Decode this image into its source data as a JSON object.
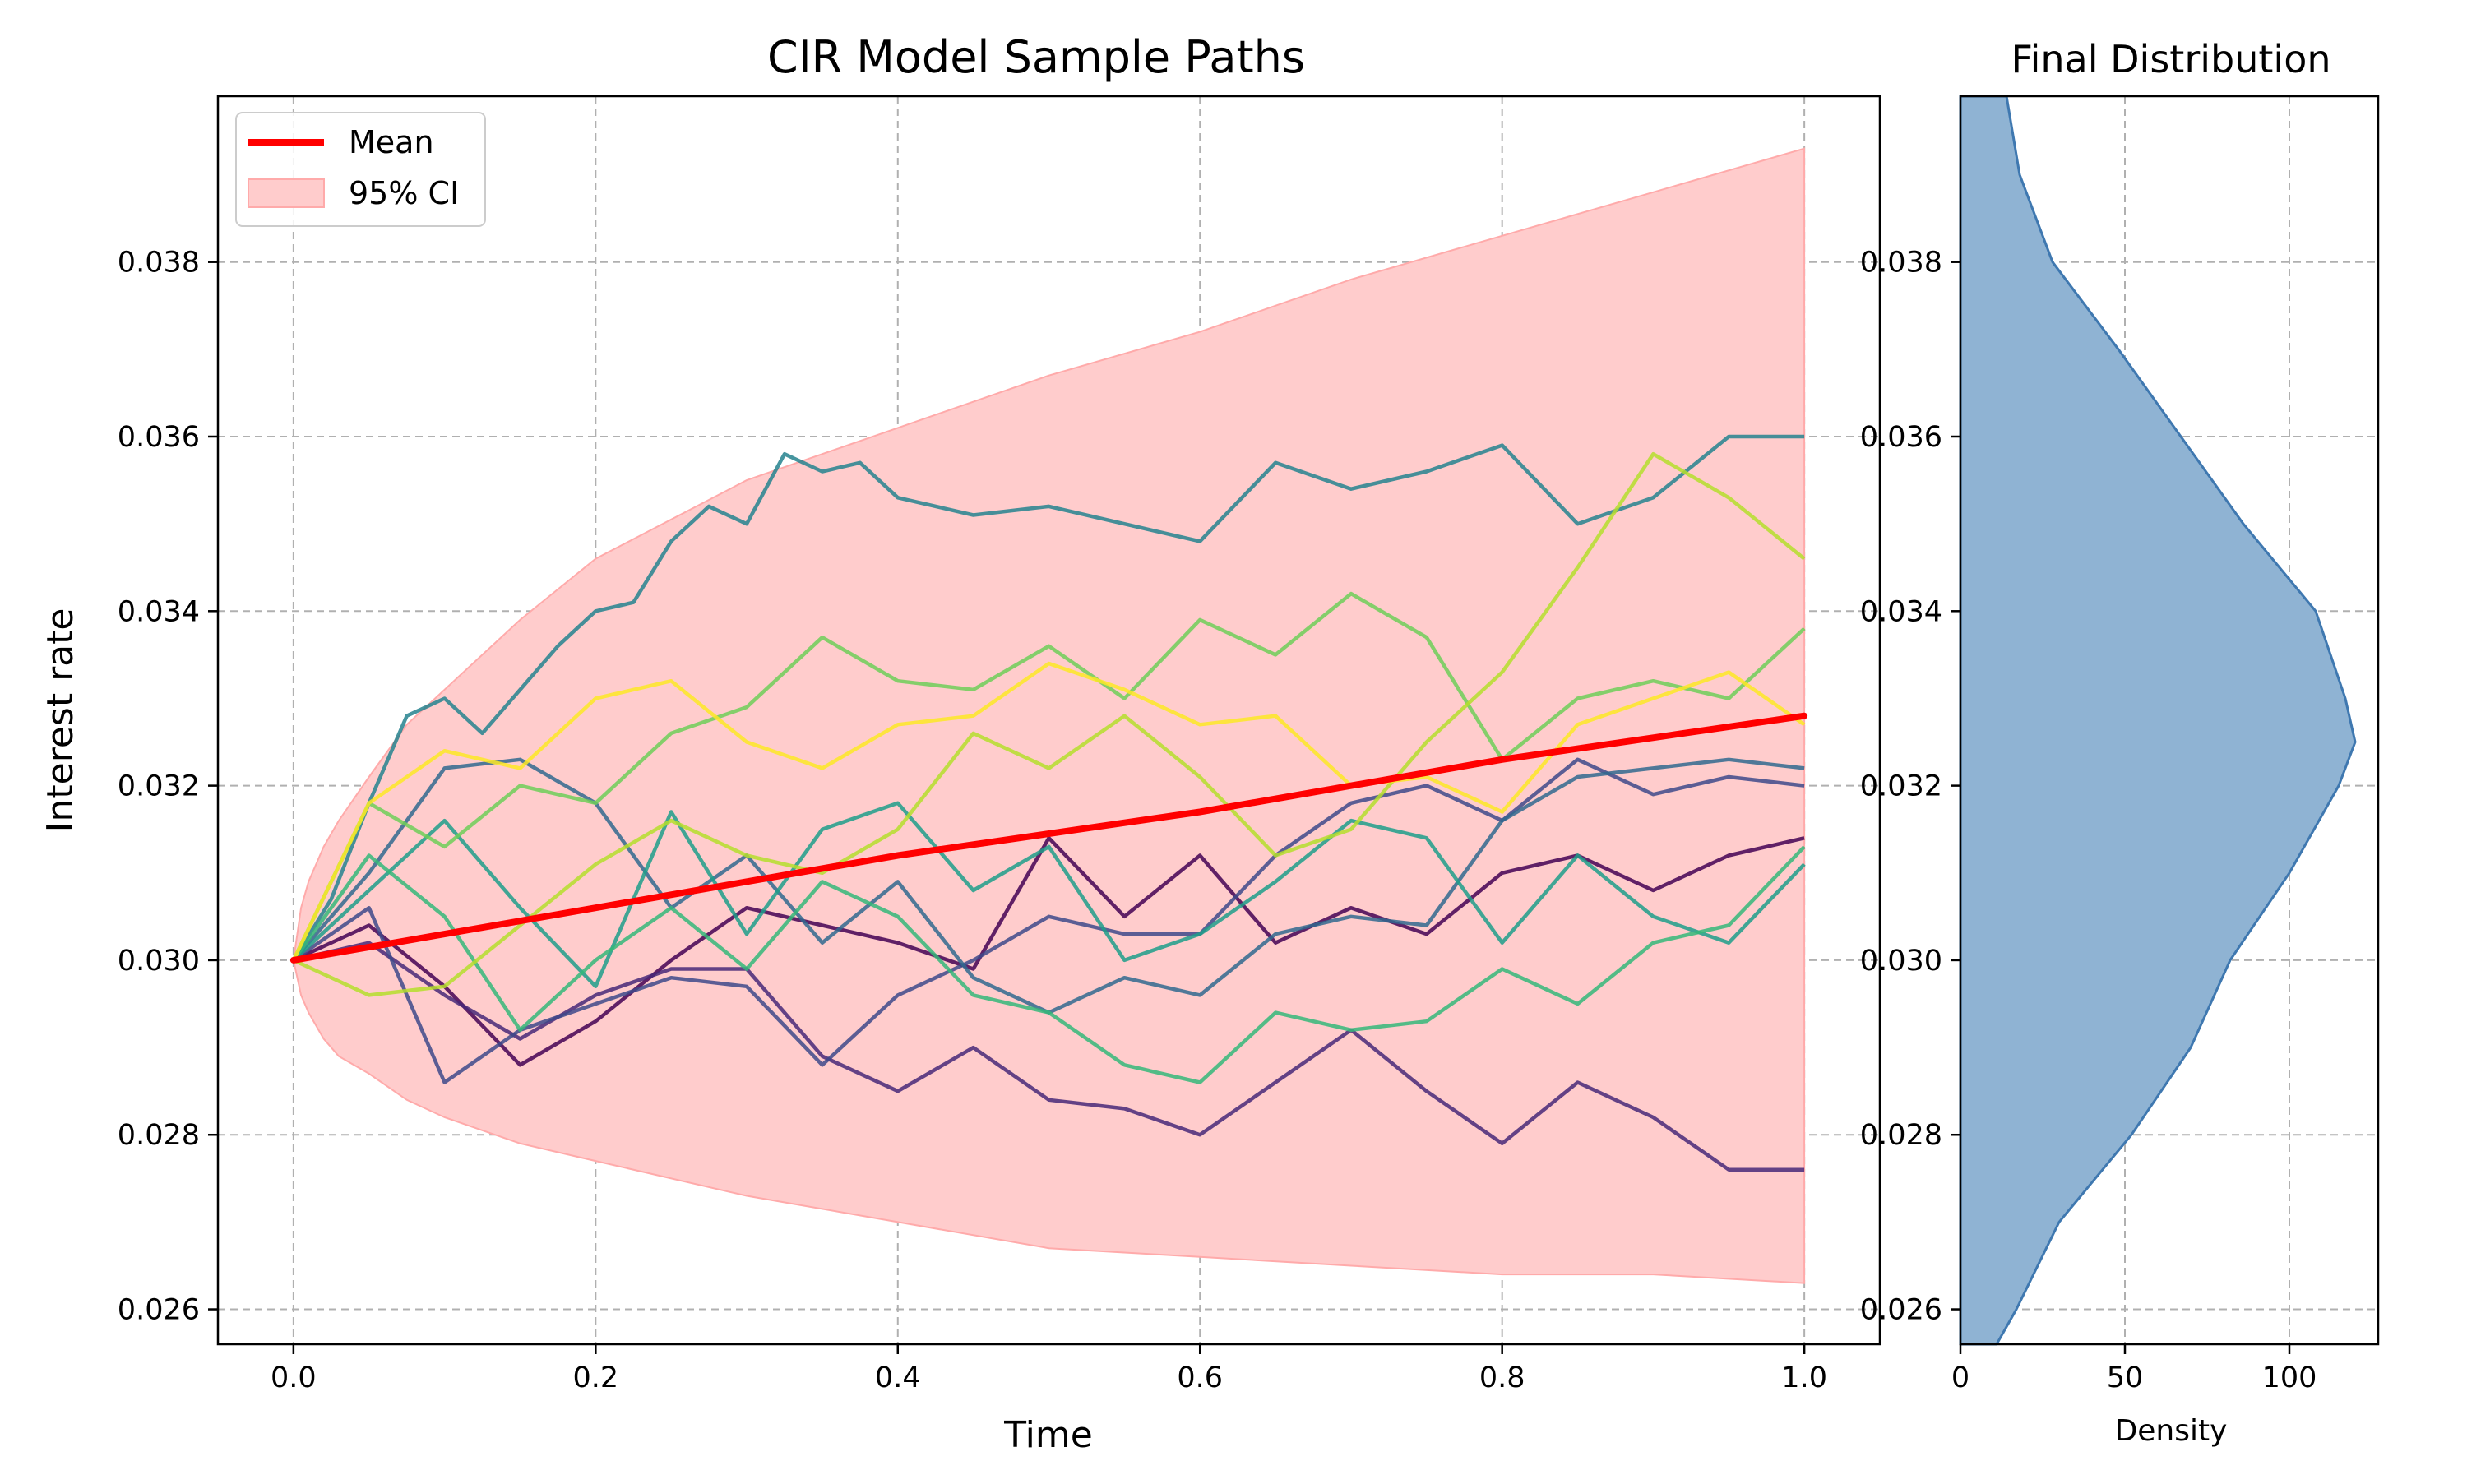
{
  "chart_data": [
    {
      "type": "line",
      "title": "CIR Model Sample Paths",
      "xlabel": "Time",
      "ylabel": "Interest rate",
      "xlim": [
        -0.05,
        1.05
      ],
      "ylim": [
        0.0256,
        0.0399
      ],
      "x_ticks": [
        0.0,
        0.2,
        0.4,
        0.6,
        0.8,
        1.0
      ],
      "x_tick_labels": [
        "0.0",
        "0.2",
        "0.4",
        "0.6",
        "0.8",
        "1.0"
      ],
      "y_ticks": [
        0.026,
        0.028,
        0.03,
        0.032,
        0.034,
        0.036,
        0.038
      ],
      "y_tick_labels": [
        "0.026",
        "0.028",
        "0.030",
        "0.032",
        "0.034",
        "0.036",
        "0.038"
      ],
      "grid": true,
      "legend": {
        "placement": "top-left",
        "entries": [
          "Mean",
          "95% CI"
        ]
      },
      "colors": {
        "mean": "#ff0000",
        "ci_fill": "#ffcccc",
        "ci_edge": "#ffaaaa"
      },
      "mean": {
        "name": "Mean",
        "x": [
          0.0,
          0.2,
          0.4,
          0.6,
          0.8,
          1.0
        ],
        "y": [
          0.03,
          0.0306,
          0.0312,
          0.0317,
          0.0323,
          0.0328
        ]
      },
      "ci_band": {
        "name": "95% CI",
        "x": [
          0.0,
          0.005,
          0.01,
          0.02,
          0.03,
          0.05,
          0.075,
          0.1,
          0.15,
          0.2,
          0.3,
          0.4,
          0.5,
          0.6,
          0.7,
          0.8,
          0.9,
          1.0
        ],
        "upper": [
          0.03,
          0.0306,
          0.0309,
          0.0313,
          0.0316,
          0.0321,
          0.0327,
          0.0331,
          0.0339,
          0.0346,
          0.0355,
          0.0361,
          0.0367,
          0.0372,
          0.0378,
          0.0383,
          0.0388,
          0.0393
        ],
        "lower": [
          0.03,
          0.0296,
          0.0294,
          0.0291,
          0.0289,
          0.0287,
          0.0284,
          0.0282,
          0.0279,
          0.0277,
          0.0273,
          0.027,
          0.0267,
          0.0266,
          0.0265,
          0.0264,
          0.0264,
          0.0263
        ]
      },
      "series": [
        {
          "color": "#440154",
          "x": [
            0.0,
            0.05,
            0.1,
            0.15,
            0.2,
            0.25,
            0.3,
            0.35,
            0.4,
            0.45,
            0.5,
            0.55,
            0.6,
            0.65,
            0.7,
            0.75,
            0.8,
            0.85,
            0.9,
            0.95,
            1.0
          ],
          "y": [
            0.03,
            0.0304,
            0.0297,
            0.0288,
            0.0293,
            0.03,
            0.0306,
            0.0304,
            0.0302,
            0.0299,
            0.0314,
            0.0305,
            0.0312,
            0.0302,
            0.0306,
            0.0303,
            0.031,
            0.0312,
            0.0308,
            0.0312,
            0.0314
          ]
        },
        {
          "color": "#482878",
          "x": [
            0.0,
            0.05,
            0.1,
            0.15,
            0.2,
            0.25,
            0.3,
            0.35,
            0.4,
            0.45,
            0.5,
            0.55,
            0.6,
            0.65,
            0.7,
            0.75,
            0.8,
            0.85,
            0.9,
            0.95,
            1.0
          ],
          "y": [
            0.03,
            0.0302,
            0.0296,
            0.0291,
            0.0296,
            0.0299,
            0.0299,
            0.0289,
            0.0285,
            0.029,
            0.0284,
            0.0283,
            0.028,
            0.0286,
            0.0292,
            0.0285,
            0.0279,
            0.0286,
            0.0282,
            0.0276,
            0.0276
          ]
        },
        {
          "color": "#3e4989",
          "x": [
            0.0,
            0.05,
            0.1,
            0.15,
            0.2,
            0.25,
            0.3,
            0.35,
            0.4,
            0.45,
            0.5,
            0.55,
            0.6,
            0.65,
            0.7,
            0.75,
            0.8,
            0.85,
            0.9,
            0.95,
            1.0
          ],
          "y": [
            0.03,
            0.0306,
            0.0286,
            0.0292,
            0.0295,
            0.0298,
            0.0297,
            0.0288,
            0.0296,
            0.03,
            0.0305,
            0.0303,
            0.0303,
            0.0312,
            0.0318,
            0.032,
            0.0316,
            0.0323,
            0.0319,
            0.0321,
            0.032
          ]
        },
        {
          "color": "#31688e",
          "x": [
            0.0,
            0.05,
            0.1,
            0.15,
            0.2,
            0.25,
            0.3,
            0.35,
            0.4,
            0.45,
            0.5,
            0.55,
            0.6,
            0.65,
            0.7,
            0.75,
            0.8,
            0.85,
            0.9,
            0.95,
            1.0
          ],
          "y": [
            0.03,
            0.031,
            0.0322,
            0.0323,
            0.0318,
            0.0306,
            0.0312,
            0.0302,
            0.0309,
            0.0298,
            0.0294,
            0.0298,
            0.0296,
            0.0303,
            0.0305,
            0.0304,
            0.0316,
            0.0321,
            0.0322,
            0.0323,
            0.0322
          ]
        },
        {
          "color": "#26828e",
          "x": [
            0.0,
            0.025,
            0.05,
            0.075,
            0.1,
            0.125,
            0.15,
            0.175,
            0.2,
            0.225,
            0.25,
            0.275,
            0.3,
            0.325,
            0.35,
            0.375,
            0.4,
            0.45,
            0.5,
            0.55,
            0.6,
            0.65,
            0.7,
            0.75,
            0.8,
            0.85,
            0.9,
            0.95,
            1.0
          ],
          "y": [
            0.03,
            0.0307,
            0.0318,
            0.0328,
            0.033,
            0.0326,
            0.0331,
            0.0336,
            0.034,
            0.0341,
            0.0348,
            0.0352,
            0.035,
            0.0358,
            0.0356,
            0.0357,
            0.0353,
            0.0351,
            0.0352,
            0.035,
            0.0348,
            0.0357,
            0.0354,
            0.0356,
            0.0359,
            0.035,
            0.0353,
            0.036,
            0.036
          ]
        },
        {
          "color": "#1f9e89",
          "x": [
            0.0,
            0.05,
            0.1,
            0.15,
            0.2,
            0.25,
            0.3,
            0.35,
            0.4,
            0.45,
            0.5,
            0.55,
            0.6,
            0.65,
            0.7,
            0.75,
            0.8,
            0.85,
            0.9,
            0.95,
            1.0
          ],
          "y": [
            0.03,
            0.0308,
            0.0316,
            0.0306,
            0.0297,
            0.0317,
            0.0303,
            0.0315,
            0.0318,
            0.0308,
            0.0313,
            0.03,
            0.0303,
            0.0309,
            0.0316,
            0.0314,
            0.0302,
            0.0312,
            0.0305,
            0.0302,
            0.0311
          ]
        },
        {
          "color": "#35b779",
          "x": [
            0.0,
            0.05,
            0.1,
            0.15,
            0.2,
            0.25,
            0.3,
            0.35,
            0.4,
            0.45,
            0.5,
            0.55,
            0.6,
            0.65,
            0.7,
            0.75,
            0.8,
            0.85,
            0.9,
            0.95,
            1.0
          ],
          "y": [
            0.03,
            0.0312,
            0.0305,
            0.0292,
            0.03,
            0.0306,
            0.0299,
            0.0309,
            0.0305,
            0.0296,
            0.0294,
            0.0288,
            0.0286,
            0.0294,
            0.0292,
            0.0293,
            0.0299,
            0.0295,
            0.0302,
            0.0304,
            0.0313
          ]
        },
        {
          "color": "#6ece58",
          "x": [
            0.0,
            0.05,
            0.1,
            0.15,
            0.2,
            0.25,
            0.3,
            0.35,
            0.4,
            0.45,
            0.5,
            0.55,
            0.6,
            0.65,
            0.7,
            0.75,
            0.8,
            0.85,
            0.9,
            0.95,
            1.0
          ],
          "y": [
            0.03,
            0.0318,
            0.0313,
            0.032,
            0.0318,
            0.0326,
            0.0329,
            0.0337,
            0.0332,
            0.0331,
            0.0336,
            0.033,
            0.0339,
            0.0335,
            0.0342,
            0.0337,
            0.0323,
            0.033,
            0.0332,
            0.033,
            0.0338
          ]
        },
        {
          "color": "#b5de2b",
          "x": [
            0.0,
            0.05,
            0.1,
            0.15,
            0.2,
            0.25,
            0.3,
            0.35,
            0.4,
            0.45,
            0.5,
            0.55,
            0.6,
            0.65,
            0.7,
            0.75,
            0.8,
            0.85,
            0.9,
            0.95,
            1.0
          ],
          "y": [
            0.03,
            0.0296,
            0.0297,
            0.0304,
            0.0311,
            0.0316,
            0.0312,
            0.031,
            0.0315,
            0.0326,
            0.0322,
            0.0328,
            0.0321,
            0.0312,
            0.0315,
            0.0325,
            0.0333,
            0.0345,
            0.0358,
            0.0353,
            0.0346
          ]
        },
        {
          "color": "#fde725",
          "x": [
            0.0,
            0.05,
            0.1,
            0.15,
            0.2,
            0.25,
            0.3,
            0.35,
            0.4,
            0.45,
            0.5,
            0.55,
            0.6,
            0.65,
            0.7,
            0.75,
            0.8,
            0.85,
            0.9,
            0.95,
            1.0
          ],
          "y": [
            0.03,
            0.0318,
            0.0324,
            0.0322,
            0.033,
            0.0332,
            0.0325,
            0.0322,
            0.0327,
            0.0328,
            0.0334,
            0.0331,
            0.0327,
            0.0328,
            0.032,
            0.0321,
            0.0317,
            0.0327,
            0.033,
            0.0333,
            0.0327
          ]
        }
      ]
    },
    {
      "type": "area",
      "title": "Final Distribution",
      "xlabel": "Density",
      "xlim": [
        0,
        127
      ],
      "ylim": [
        0.0256,
        0.0399
      ],
      "x_ticks": [
        0,
        50,
        100
      ],
      "x_tick_labels": [
        "0",
        "50",
        "100"
      ],
      "y_ticks": [
        0.026,
        0.028,
        0.03,
        0.032,
        0.034,
        0.036,
        0.038
      ],
      "y_tick_labels": [
        "0.026",
        "0.028",
        "0.030",
        "0.032",
        "0.034",
        "0.036",
        "0.038"
      ],
      "grid": true,
      "colors": {
        "fill": "#8fb3d3",
        "edge": "#3f78b0"
      },
      "y": [
        0.0256,
        0.026,
        0.027,
        0.028,
        0.029,
        0.03,
        0.031,
        0.032,
        0.0325,
        0.033,
        0.034,
        0.035,
        0.036,
        0.037,
        0.038,
        0.039,
        0.0399
      ],
      "density": [
        11,
        17,
        30,
        52,
        70,
        82,
        100,
        115,
        120,
        117,
        108,
        86,
        67,
        48,
        28,
        18,
        14
      ]
    }
  ]
}
